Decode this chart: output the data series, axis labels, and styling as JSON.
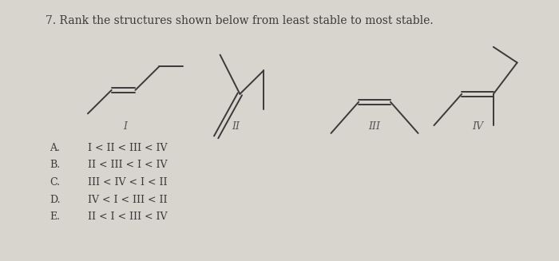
{
  "title": "7. Rank the structures shown below from least stable to most stable.",
  "title_fontsize": 10,
  "bg_color": "#d8d4ce",
  "text_color": "#3a3a3a",
  "label_color": "#555555",
  "choices_letters": [
    "A.",
    "B.",
    "C.",
    "D.",
    "E."
  ],
  "choices_text": [
    "I < II < III < IV",
    "II < III < I < IV",
    "III < IV < I < II",
    "IV < I < III < II",
    "II < I < III < IV"
  ],
  "roman_labels": [
    "I",
    "II",
    "III",
    "IV"
  ],
  "structure_lw": 1.4,
  "line_color": "#3a3a3a"
}
